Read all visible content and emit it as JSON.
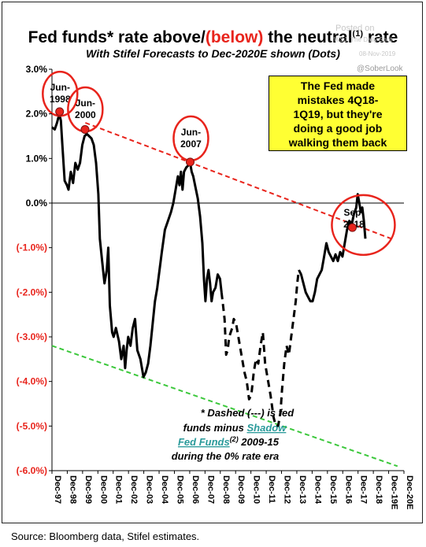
{
  "header": {
    "title_part1": "Fed funds* rate above/",
    "title_red": "(below)",
    "title_part2": " the neutral",
    "title_sup": "(1)",
    "title_part3": " rate",
    "subtitle": "With Stifel Forecasts to Dec-2020E shown (Dots)"
  },
  "watermark": {
    "posted": "Posted on",
    "shot": "WSJ. The Daily Shot",
    "date": "08-Nov-2019",
    "handle": "@SoberLook"
  },
  "callout": {
    "text": "The Fed made\nmistakes 4Q18-\n1Q19, but they're\ndoing a good job\nwalking them back"
  },
  "note": {
    "line1": "* Dashed (---) is fed",
    "line2_text": "funds minus ",
    "line2_link": "Shadow",
    "line3_link": "Fed Funds",
    "line3_sup": "(2)",
    "line3_text": " 2009-15",
    "line4": "during the 0% rate era"
  },
  "source": "Source: Bloomberg data, Stifel estimates.",
  "colors": {
    "red": "#e8241c",
    "green": "#3cc83c",
    "callout_bg": "#ffff33",
    "link": "#2a9a9a"
  },
  "chart_data": {
    "type": "line",
    "ylim": [
      -6.0,
      3.0
    ],
    "y_ticks": [
      3.0,
      2.0,
      1.0,
      0.0,
      -1.0,
      -2.0,
      -3.0,
      -4.0,
      -5.0,
      -6.0
    ],
    "y_tick_labels": [
      "3.0%",
      "2.0%",
      "1.0%",
      "0.0%",
      "(-1.0%)",
      "(-2.0%)",
      "(-3.0%)",
      "(-4.0%)",
      "(-5.0%)",
      "(-6.0%)"
    ],
    "x_tick_labels": [
      "Dec-97",
      "Dec-98",
      "Dec-99",
      "Dec-00",
      "Dec-01",
      "Dec-02",
      "Dec-03",
      "Dec-04",
      "Dec-05",
      "Dec-06",
      "Dec-07",
      "Dec-08",
      "Dec-09",
      "Dec-10",
      "Dec-11",
      "Dec-12",
      "Dec-13",
      "Dec-14",
      "Dec-15",
      "Dec-16",
      "Dec-17",
      "Dec-18",
      "Dec-19E",
      "Dec-20E"
    ],
    "xlim": [
      1997.92,
      2020.92
    ],
    "series": [
      {
        "style": "solid",
        "points": [
          [
            1997.92,
            1.7
          ],
          [
            1998.1,
            1.65
          ],
          [
            1998.25,
            1.8
          ],
          [
            1998.4,
            2.0
          ],
          [
            1998.5,
            1.85
          ],
          [
            1998.6,
            1.3
          ],
          [
            1998.75,
            0.5
          ],
          [
            1998.9,
            0.4
          ],
          [
            1999.0,
            0.3
          ],
          [
            1999.15,
            0.7
          ],
          [
            1999.3,
            0.45
          ],
          [
            1999.45,
            0.9
          ],
          [
            1999.6,
            0.75
          ],
          [
            1999.75,
            0.9
          ],
          [
            1999.9,
            1.3
          ],
          [
            2000.05,
            1.5
          ],
          [
            2000.2,
            1.55
          ],
          [
            2000.35,
            1.5
          ],
          [
            2000.5,
            1.45
          ],
          [
            2000.65,
            1.3
          ],
          [
            2000.8,
            0.9
          ],
          [
            2000.95,
            0.2
          ],
          [
            2001.05,
            -0.8
          ],
          [
            2001.2,
            -1.3
          ],
          [
            2001.35,
            -1.8
          ],
          [
            2001.5,
            -1.5
          ],
          [
            2001.6,
            -1.0
          ],
          [
            2001.7,
            -2.3
          ],
          [
            2001.85,
            -2.9
          ],
          [
            2001.95,
            -3.0
          ],
          [
            2002.1,
            -2.8
          ],
          [
            2002.3,
            -3.1
          ],
          [
            2002.45,
            -3.5
          ],
          [
            2002.6,
            -3.2
          ],
          [
            2002.7,
            -3.7
          ],
          [
            2002.8,
            -3.3
          ],
          [
            2002.9,
            -3.0
          ],
          [
            2003.05,
            -3.2
          ],
          [
            2003.2,
            -2.8
          ],
          [
            2003.35,
            -2.6
          ],
          [
            2003.5,
            -3.3
          ],
          [
            2003.7,
            -3.5
          ],
          [
            2003.9,
            -3.9
          ],
          [
            2004.05,
            -3.8
          ],
          [
            2004.2,
            -3.6
          ],
          [
            2004.35,
            -3.2
          ],
          [
            2004.5,
            -2.7
          ],
          [
            2004.65,
            -2.2
          ],
          [
            2004.8,
            -1.9
          ],
          [
            2004.95,
            -1.5
          ],
          [
            2005.1,
            -1.1
          ],
          [
            2005.3,
            -0.6
          ],
          [
            2005.5,
            -0.4
          ],
          [
            2005.7,
            -0.2
          ],
          [
            2005.85,
            0.0
          ],
          [
            2006.0,
            0.3
          ],
          [
            2006.15,
            0.6
          ],
          [
            2006.25,
            0.4
          ],
          [
            2006.35,
            0.7
          ],
          [
            2006.45,
            0.3
          ],
          [
            2006.55,
            0.7
          ],
          [
            2006.7,
            0.8
          ],
          [
            2006.85,
            0.85
          ],
          [
            2006.95,
            0.9
          ],
          [
            2007.05,
            0.7
          ],
          [
            2007.15,
            0.6
          ],
          [
            2007.3,
            0.35
          ],
          [
            2007.45,
            0.1
          ],
          [
            2007.6,
            -0.3
          ],
          [
            2007.75,
            -0.9
          ],
          [
            2007.85,
            -1.7
          ],
          [
            2007.95,
            -2.2
          ],
          [
            2008.05,
            -1.7
          ],
          [
            2008.15,
            -1.5
          ],
          [
            2008.25,
            -1.8
          ],
          [
            2008.35,
            -2.2
          ],
          [
            2008.45,
            -2.0
          ],
          [
            2008.6,
            -1.9
          ],
          [
            2008.75,
            -1.6
          ],
          [
            2008.9,
            -1.7
          ],
          [
            2009.0,
            -2.0
          ]
        ]
      },
      {
        "style": "dashed",
        "points": [
          [
            2009.0,
            -2.0
          ],
          [
            2009.1,
            -2.3
          ],
          [
            2009.2,
            -2.6
          ],
          [
            2009.3,
            -3.4
          ],
          [
            2009.4,
            -3.3
          ],
          [
            2009.5,
            -3.0
          ],
          [
            2009.6,
            -2.9
          ],
          [
            2009.7,
            -2.8
          ],
          [
            2009.8,
            -2.6
          ],
          [
            2009.95,
            -2.7
          ],
          [
            2010.1,
            -3.0
          ],
          [
            2010.3,
            -3.4
          ],
          [
            2010.5,
            -3.8
          ],
          [
            2010.65,
            -4.0
          ],
          [
            2010.8,
            -4.4
          ],
          [
            2010.95,
            -4.3
          ],
          [
            2011.1,
            -3.8
          ],
          [
            2011.25,
            -3.5
          ],
          [
            2011.4,
            -3.6
          ],
          [
            2011.55,
            -3.2
          ],
          [
            2011.7,
            -2.9
          ],
          [
            2011.85,
            -3.6
          ],
          [
            2012.0,
            -3.9
          ],
          [
            2012.2,
            -4.3
          ],
          [
            2012.4,
            -4.8
          ],
          [
            2012.55,
            -5.0
          ],
          [
            2012.7,
            -5.0
          ],
          [
            2012.85,
            -4.7
          ],
          [
            2012.95,
            -4.2
          ],
          [
            2013.1,
            -3.6
          ],
          [
            2013.25,
            -3.2
          ],
          [
            2013.4,
            -3.4
          ],
          [
            2013.55,
            -3.0
          ],
          [
            2013.7,
            -2.6
          ],
          [
            2013.85,
            -2.2
          ],
          [
            2013.95,
            -1.8
          ],
          [
            2014.05,
            -1.5
          ]
        ]
      },
      {
        "style": "solid",
        "points": [
          [
            2014.05,
            -1.5
          ],
          [
            2014.2,
            -1.6
          ],
          [
            2014.35,
            -1.8
          ],
          [
            2014.5,
            -2.0
          ],
          [
            2014.65,
            -2.1
          ],
          [
            2014.8,
            -2.2
          ],
          [
            2014.95,
            -2.2
          ],
          [
            2015.1,
            -2.0
          ],
          [
            2015.25,
            -1.7
          ],
          [
            2015.4,
            -1.6
          ],
          [
            2015.55,
            -1.5
          ],
          [
            2015.7,
            -1.2
          ],
          [
            2015.85,
            -0.9
          ],
          [
            2016.0,
            -1.1
          ],
          [
            2016.15,
            -1.2
          ],
          [
            2016.3,
            -1.3
          ],
          [
            2016.45,
            -1.15
          ],
          [
            2016.6,
            -1.3
          ],
          [
            2016.75,
            -1.1
          ],
          [
            2016.9,
            -1.2
          ],
          [
            2017.05,
            -0.9
          ],
          [
            2017.2,
            -0.6
          ],
          [
            2017.35,
            -0.4
          ],
          [
            2017.5,
            -0.5
          ],
          [
            2017.65,
            -0.25
          ],
          [
            2017.8,
            -0.1
          ],
          [
            2017.9,
            0.2
          ],
          [
            2018.0,
            0.0
          ],
          [
            2018.1,
            -0.2
          ],
          [
            2018.2,
            -0.1
          ],
          [
            2018.3,
            -0.4
          ],
          [
            2018.4,
            -0.8
          ]
        ]
      }
    ],
    "forecast_dots": [
      [
        1998.42,
        2.05
      ],
      [
        2000.08,
        1.65
      ],
      [
        2006.95,
        0.92
      ],
      [
        2017.55,
        -0.55
      ]
    ],
    "trend_lines": [
      {
        "color": "red",
        "points": [
          [
            2000.1,
            1.8
          ],
          [
            2020.1,
            -0.8
          ]
        ]
      },
      {
        "color": "green",
        "points": [
          [
            1997.92,
            -3.2
          ],
          [
            2020.5,
            -5.9
          ]
        ]
      }
    ],
    "annotations": [
      {
        "label": "Jun-\n1998",
        "x": 1998.45,
        "y": 2.45
      },
      {
        "label": "Jun-\n2000",
        "x": 2000.1,
        "y": 2.1
      },
      {
        "label": "Jun-\n2007",
        "x": 2007.0,
        "y": 1.45
      },
      {
        "label": "Sep-\n2018",
        "x": 2017.65,
        "y": -0.35
      }
    ]
  }
}
